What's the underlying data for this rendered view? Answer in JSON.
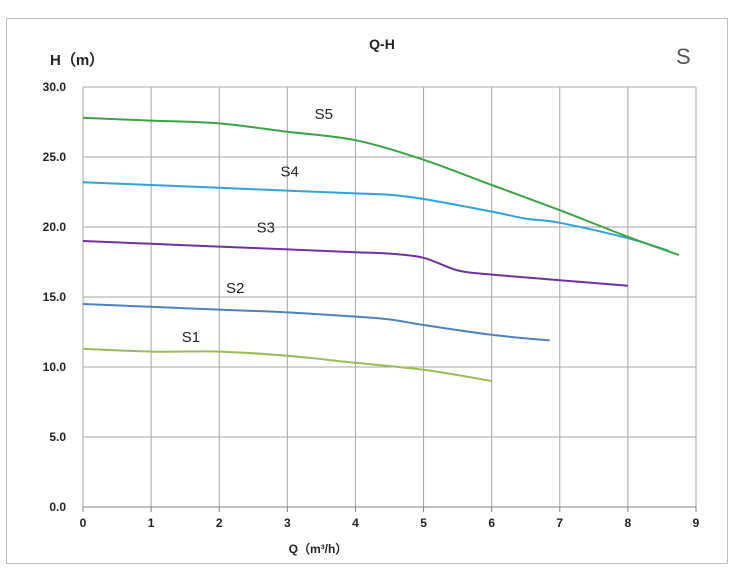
{
  "chart_data": {
    "type": "line",
    "title": "Q-H",
    "ylabel": "H（m）",
    "xlabel": "Q（m³/h）",
    "corner_label": "S",
    "xlim": [
      0,
      9
    ],
    "ylim": [
      0,
      30
    ],
    "x_ticks": [
      "0",
      "1",
      "2",
      "3",
      "4",
      "5",
      "6",
      "7",
      "8",
      "9"
    ],
    "y_ticks": [
      "0.0",
      "5.0",
      "10.0",
      "15.0",
      "20.0",
      "25.0",
      "30.0"
    ],
    "grid": true,
    "series": [
      {
        "name": "S1",
        "color": "#9bbb59",
        "x": [
          0,
          1,
          2,
          3,
          4,
          5,
          6
        ],
        "y": [
          11.3,
          11.1,
          11.1,
          10.8,
          10.3,
          9.8,
          9.0
        ]
      },
      {
        "name": "S2",
        "color": "#4f81bd",
        "x": [
          0,
          1,
          2,
          3,
          4,
          4.5,
          5,
          6,
          6.85
        ],
        "y": [
          14.5,
          14.3,
          14.1,
          13.9,
          13.6,
          13.4,
          13.0,
          12.3,
          11.9
        ]
      },
      {
        "name": "S3",
        "color": "#7030a0",
        "x": [
          0,
          1,
          2,
          3,
          4,
          4.5,
          5,
          5.5,
          6,
          7,
          8
        ],
        "y": [
          19.0,
          18.8,
          18.6,
          18.4,
          18.2,
          18.1,
          17.8,
          16.9,
          16.6,
          16.2,
          15.8
        ]
      },
      {
        "name": "S4",
        "color": "#2fa4dc",
        "x": [
          0,
          1,
          2,
          3,
          4,
          4.5,
          5,
          6,
          6.5,
          7,
          8,
          8.6
        ],
        "y": [
          23.2,
          23.0,
          22.8,
          22.6,
          22.4,
          22.3,
          22.0,
          21.1,
          20.6,
          20.3,
          19.2,
          18.3
        ]
      },
      {
        "name": "S5",
        "color": "#3aa345",
        "x": [
          0,
          1,
          2,
          3,
          4,
          5,
          6,
          7,
          8,
          8.75
        ],
        "y": [
          27.8,
          27.6,
          27.4,
          26.8,
          26.2,
          24.8,
          23.0,
          21.2,
          19.3,
          18.0
        ]
      }
    ],
    "series_labels": [
      {
        "text": "S1",
        "x": 1.45,
        "y": 11.8
      },
      {
        "text": "S2",
        "x": 2.1,
        "y": 15.3
      },
      {
        "text": "S3",
        "x": 2.55,
        "y": 19.6
      },
      {
        "text": "S4",
        "x": 2.9,
        "y": 23.6
      },
      {
        "text": "S5",
        "x": 3.4,
        "y": 27.7
      }
    ]
  }
}
